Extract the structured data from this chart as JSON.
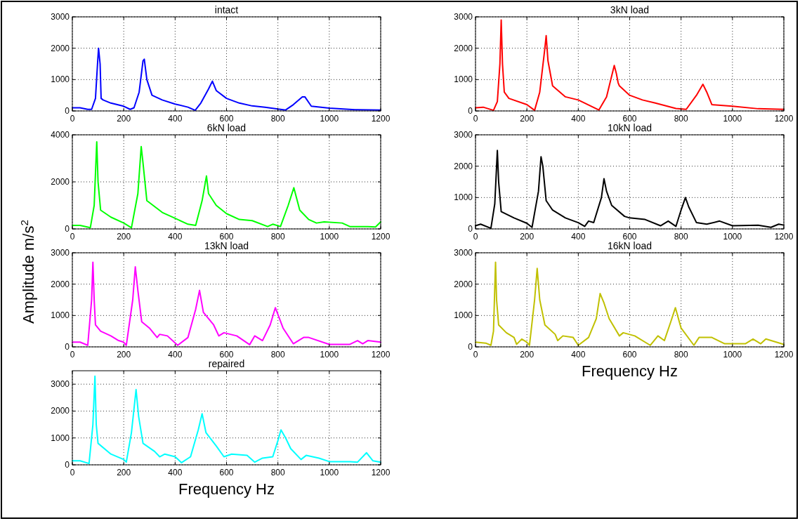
{
  "chart_data": [
    {
      "type": "line",
      "title": "intact",
      "xlim": [
        0,
        1200
      ],
      "xticks": [
        0,
        200,
        400,
        600,
        800,
        1000,
        1200
      ],
      "ylim": [
        0,
        3000
      ],
      "yticks": [
        0,
        1000,
        2000,
        3000
      ],
      "grid": true,
      "series": [
        {
          "color": "#0000ff",
          "x": [
            0,
            30,
            60,
            75,
            90,
            98,
            102,
            108,
            112,
            120,
            150,
            200,
            225,
            240,
            260,
            275,
            280,
            290,
            310,
            350,
            400,
            450,
            478,
            500,
            530,
            545,
            560,
            600,
            650,
            700,
            750,
            800,
            830,
            860,
            895,
            905,
            930,
            1000,
            1100,
            1200
          ],
          "values": [
            100,
            100,
            50,
            50,
            400,
            1500,
            2000,
            1500,
            400,
            350,
            250,
            150,
            50,
            100,
            600,
            1600,
            1650,
            1000,
            500,
            350,
            220,
            120,
            20,
            250,
            700,
            950,
            650,
            400,
            250,
            160,
            120,
            60,
            30,
            200,
            450,
            450,
            150,
            90,
            40,
            30
          ]
        }
      ]
    },
    {
      "type": "line",
      "title": "3kN load",
      "xlim": [
        0,
        1200
      ],
      "xticks": [
        0,
        200,
        400,
        600,
        800,
        1000,
        1200
      ],
      "ylim": [
        0,
        3000
      ],
      "yticks": [
        0,
        1000,
        2000,
        3000
      ],
      "grid": true,
      "series": [
        {
          "color": "#ff0000",
          "x": [
            0,
            30,
            70,
            85,
            95,
            100,
            105,
            112,
            130,
            200,
            230,
            250,
            270,
            275,
            282,
            300,
            350,
            400,
            480,
            510,
            540,
            548,
            555,
            560,
            600,
            650,
            700,
            780,
            820,
            860,
            885,
            900,
            920,
            1000,
            1100,
            1200
          ],
          "values": [
            100,
            120,
            20,
            300,
            1500,
            2900,
            1500,
            600,
            400,
            200,
            20,
            600,
            2000,
            2400,
            1600,
            800,
            450,
            350,
            30,
            450,
            1450,
            1200,
            900,
            800,
            500,
            350,
            250,
            80,
            50,
            500,
            850,
            600,
            200,
            150,
            70,
            50
          ]
        }
      ]
    },
    {
      "type": "line",
      "title": "6kN load",
      "xlim": [
        0,
        1200
      ],
      "xticks": [
        0,
        200,
        400,
        600,
        800,
        1000,
        1200
      ],
      "ylim": [
        0,
        4000
      ],
      "yticks": [
        0,
        2000,
        4000
      ],
      "grid": true,
      "series": [
        {
          "color": "#00ff00",
          "x": [
            0,
            30,
            70,
            85,
            95,
            100,
            110,
            150,
            200,
            230,
            255,
            268,
            275,
            290,
            350,
            400,
            450,
            480,
            505,
            522,
            530,
            560,
            600,
            650,
            700,
            760,
            780,
            810,
            840,
            862,
            885,
            920,
            950,
            980,
            1050,
            1080,
            1150,
            1180,
            1200
          ],
          "values": [
            150,
            150,
            50,
            1000,
            3700,
            2000,
            800,
            500,
            250,
            50,
            1500,
            3500,
            2800,
            1200,
            700,
            450,
            200,
            150,
            1200,
            2250,
            1500,
            1000,
            650,
            400,
            350,
            100,
            200,
            100,
            1000,
            1750,
            800,
            400,
            250,
            300,
            250,
            100,
            100,
            80,
            300
          ]
        }
      ]
    },
    {
      "type": "line",
      "title": "10kN load",
      "xlim": [
        0,
        1200
      ],
      "xticks": [
        0,
        200,
        400,
        600,
        800,
        1000,
        1200
      ],
      "ylim": [
        0,
        3000
      ],
      "yticks": [
        0,
        1000,
        2000,
        3000
      ],
      "grid": true,
      "series": [
        {
          "color": "#000000",
          "x": [
            0,
            20,
            60,
            75,
            85,
            90,
            100,
            150,
            200,
            220,
            245,
            255,
            262,
            275,
            300,
            350,
            400,
            425,
            440,
            460,
            490,
            500,
            510,
            530,
            580,
            600,
            660,
            720,
            750,
            780,
            800,
            817,
            830,
            860,
            900,
            950,
            1000,
            1100,
            1150,
            1180,
            1200
          ],
          "values": [
            100,
            150,
            20,
            800,
            2500,
            1500,
            550,
            350,
            180,
            50,
            1200,
            2300,
            2000,
            900,
            600,
            350,
            200,
            80,
            250,
            200,
            1000,
            1600,
            1200,
            750,
            400,
            350,
            300,
            100,
            250,
            80,
            600,
            1000,
            700,
            200,
            150,
            250,
            100,
            120,
            50,
            150,
            120
          ]
        }
      ]
    },
    {
      "type": "line",
      "title": "13kN load",
      "ylabel": "Amplitude m/s$^{2}$",
      "xlim": [
        0,
        1200
      ],
      "xticks": [
        0,
        200,
        400,
        600,
        800,
        1000,
        1200
      ],
      "ylim": [
        0,
        3000
      ],
      "yticks": [
        0,
        1000,
        2000,
        3000
      ],
      "grid": true,
      "series": [
        {
          "color": "#ff00ff",
          "x": [
            0,
            30,
            60,
            75,
            80,
            85,
            90,
            110,
            150,
            180,
            200,
            210,
            235,
            245,
            255,
            270,
            300,
            330,
            340,
            370,
            410,
            450,
            480,
            495,
            510,
            550,
            570,
            590,
            640,
            690,
            710,
            740,
            770,
            790,
            820,
            860,
            900,
            920,
            1000,
            1080,
            1110,
            1130,
            1150,
            1200
          ],
          "values": [
            150,
            150,
            50,
            1500,
            2700,
            1500,
            700,
            500,
            350,
            200,
            150,
            50,
            1500,
            2550,
            1800,
            800,
            600,
            300,
            400,
            350,
            50,
            300,
            1200,
            1800,
            1100,
            700,
            350,
            450,
            350,
            70,
            350,
            200,
            700,
            1250,
            600,
            100,
            300,
            300,
            80,
            80,
            200,
            100,
            200,
            150
          ]
        }
      ]
    },
    {
      "type": "line",
      "title": "16kN load",
      "xlabel": "Frequency Hz",
      "xlim": [
        0,
        1200
      ],
      "xticks": [
        0,
        200,
        400,
        600,
        800,
        1000,
        1200
      ],
      "ylim": [
        0,
        3000
      ],
      "yticks": [
        0,
        1000,
        2000,
        3000
      ],
      "grid": true,
      "series": [
        {
          "color": "#c0c000",
          "x": [
            0,
            40,
            60,
            70,
            78,
            82,
            90,
            120,
            150,
            160,
            180,
            200,
            210,
            230,
            240,
            250,
            270,
            310,
            320,
            340,
            380,
            400,
            440,
            470,
            485,
            500,
            520,
            560,
            575,
            620,
            680,
            710,
            735,
            760,
            778,
            800,
            850,
            870,
            920,
            970,
            1050,
            1080,
            1110,
            1130,
            1200
          ],
          "values": [
            150,
            120,
            50,
            500,
            2700,
            1500,
            700,
            450,
            300,
            80,
            250,
            150,
            50,
            1500,
            2500,
            1500,
            700,
            400,
            200,
            350,
            300,
            50,
            300,
            900,
            1700,
            1400,
            900,
            350,
            450,
            350,
            50,
            350,
            200,
            800,
            1250,
            600,
            50,
            300,
            300,
            100,
            100,
            250,
            100,
            250,
            80
          ]
        }
      ]
    },
    {
      "type": "line",
      "title": "repaired",
      "xlabel": "Frequency Hz",
      "xlim": [
        0,
        1200
      ],
      "xticks": [
        0,
        200,
        400,
        600,
        800,
        1000,
        1200
      ],
      "ylim": [
        0,
        3500
      ],
      "yticks": [
        0,
        1000,
        2000,
        3000
      ],
      "grid": true,
      "series": [
        {
          "color": "#00ffff",
          "x": [
            0,
            30,
            65,
            80,
            88,
            93,
            100,
            150,
            200,
            210,
            230,
            248,
            258,
            275,
            320,
            340,
            360,
            400,
            425,
            460,
            490,
            505,
            520,
            560,
            590,
            620,
            680,
            710,
            740,
            780,
            800,
            812,
            830,
            850,
            890,
            910,
            960,
            1000,
            1080,
            1110,
            1145,
            1170,
            1200
          ],
          "values": [
            150,
            150,
            50,
            1500,
            3300,
            1500,
            800,
            400,
            200,
            100,
            1200,
            2800,
            1800,
            800,
            500,
            300,
            400,
            300,
            80,
            300,
            1300,
            1900,
            1200,
            700,
            300,
            400,
            350,
            100,
            250,
            300,
            900,
            1300,
            1000,
            600,
            200,
            350,
            250,
            120,
            120,
            100,
            450,
            150,
            100
          ]
        }
      ]
    }
  ]
}
